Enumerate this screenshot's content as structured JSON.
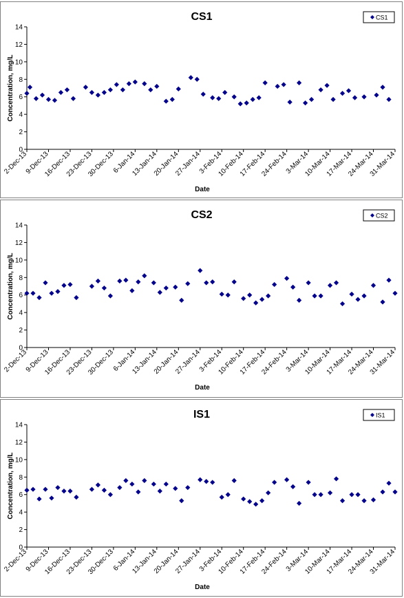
{
  "chart_data": [
    {
      "type": "scatter",
      "title": "CS1",
      "xlabel": "Date",
      "ylabel": "Concentration, mg/L",
      "ylim": [
        0,
        14
      ],
      "yticks": [
        0,
        2,
        4,
        6,
        8,
        10,
        12,
        14
      ],
      "xlim": [
        "2013-12-02",
        "2014-03-31"
      ],
      "xtick_labels": [
        "2-Dec-13",
        "9-Dec-13",
        "16-Dec-13",
        "23-Dec-13",
        "30-Dec-13",
        "6-Jan-14",
        "13-Jan-14",
        "20-Jan-14",
        "27-Jan-14",
        "3-Feb-14",
        "10-Feb-14",
        "17-Feb-14",
        "24-Feb-14",
        "3-Mar-14",
        "10-Mar-14",
        "17-Mar-14",
        "24-Mar-14",
        "31-Mar-14"
      ],
      "grid": false,
      "legend_position": "top-right",
      "marker_color": "#00008B",
      "series": [
        {
          "name": "CS1",
          "points": [
            {
              "x": "2013-12-02",
              "y": 6.4
            },
            {
              "x": "2013-12-03",
              "y": 7.1
            },
            {
              "x": "2013-12-05",
              "y": 5.8
            },
            {
              "x": "2013-12-07",
              "y": 6.2
            },
            {
              "x": "2013-12-09",
              "y": 5.7
            },
            {
              "x": "2013-12-11",
              "y": 5.6
            },
            {
              "x": "2013-12-13",
              "y": 6.5
            },
            {
              "x": "2013-12-15",
              "y": 6.8
            },
            {
              "x": "2013-12-17",
              "y": 5.8
            },
            {
              "x": "2013-12-21",
              "y": 7.1
            },
            {
              "x": "2013-12-23",
              "y": 6.5
            },
            {
              "x": "2013-12-25",
              "y": 6.2
            },
            {
              "x": "2013-12-27",
              "y": 6.5
            },
            {
              "x": "2013-12-29",
              "y": 6.8
            },
            {
              "x": "2013-12-31",
              "y": 7.4
            },
            {
              "x": "2014-01-02",
              "y": 6.8
            },
            {
              "x": "2014-01-04",
              "y": 7.5
            },
            {
              "x": "2014-01-06",
              "y": 7.7
            },
            {
              "x": "2014-01-09",
              "y": 7.5
            },
            {
              "x": "2014-01-11",
              "y": 6.8
            },
            {
              "x": "2014-01-13",
              "y": 7.2
            },
            {
              "x": "2014-01-16",
              "y": 5.5
            },
            {
              "x": "2014-01-18",
              "y": 5.7
            },
            {
              "x": "2014-01-20",
              "y": 6.9
            },
            {
              "x": "2014-01-24",
              "y": 8.2
            },
            {
              "x": "2014-01-26",
              "y": 8.0
            },
            {
              "x": "2014-01-28",
              "y": 6.3
            },
            {
              "x": "2014-01-31",
              "y": 5.9
            },
            {
              "x": "2014-02-02",
              "y": 5.8
            },
            {
              "x": "2014-02-04",
              "y": 6.5
            },
            {
              "x": "2014-02-07",
              "y": 6.0
            },
            {
              "x": "2014-02-09",
              "y": 5.2
            },
            {
              "x": "2014-02-11",
              "y": 5.3
            },
            {
              "x": "2014-02-13",
              "y": 5.7
            },
            {
              "x": "2014-02-15",
              "y": 5.9
            },
            {
              "x": "2014-02-17",
              "y": 7.6
            },
            {
              "x": "2014-02-21",
              "y": 7.2
            },
            {
              "x": "2014-02-23",
              "y": 7.4
            },
            {
              "x": "2014-02-25",
              "y": 5.4
            },
            {
              "x": "2014-02-28",
              "y": 7.6
            },
            {
              "x": "2014-03-02",
              "y": 5.3
            },
            {
              "x": "2014-03-04",
              "y": 5.7
            },
            {
              "x": "2014-03-07",
              "y": 6.8
            },
            {
              "x": "2014-03-09",
              "y": 7.3
            },
            {
              "x": "2014-03-11",
              "y": 5.7
            },
            {
              "x": "2014-03-14",
              "y": 6.4
            },
            {
              "x": "2014-03-16",
              "y": 6.7
            },
            {
              "x": "2014-03-18",
              "y": 5.9
            },
            {
              "x": "2014-03-21",
              "y": 6.0
            },
            {
              "x": "2014-03-25",
              "y": 6.2
            },
            {
              "x": "2014-03-27",
              "y": 7.1
            },
            {
              "x": "2014-03-29",
              "y": 5.7
            }
          ]
        }
      ]
    },
    {
      "type": "scatter",
      "title": "CS2",
      "xlabel": "Date",
      "ylabel": "Concentration, mg/L",
      "ylim": [
        0,
        14
      ],
      "yticks": [
        0,
        2,
        4,
        6,
        8,
        10,
        12,
        14
      ],
      "xlim": [
        "2013-12-02",
        "2014-03-31"
      ],
      "xtick_labels": [
        "2-Dec-13",
        "9-Dec-13",
        "16-Dec-13",
        "23-Dec-13",
        "30-Dec-13",
        "6-Jan-14",
        "13-Jan-14",
        "20-Jan-14",
        "27-Jan-14",
        "3-Feb-14",
        "10-Feb-14",
        "17-Feb-14",
        "24-Feb-14",
        "3-Mar-14",
        "10-Mar-14",
        "17-Mar-14",
        "24-Mar-14",
        "31-Mar-14"
      ],
      "grid": false,
      "legend_position": "top-right",
      "marker_color": "#00008B",
      "series": [
        {
          "name": "CS2",
          "points": [
            {
              "x": "2013-12-02",
              "y": 6.2
            },
            {
              "x": "2013-12-04",
              "y": 6.2
            },
            {
              "x": "2013-12-06",
              "y": 5.7
            },
            {
              "x": "2013-12-08",
              "y": 7.4
            },
            {
              "x": "2013-12-10",
              "y": 6.2
            },
            {
              "x": "2013-12-12",
              "y": 6.4
            },
            {
              "x": "2013-12-14",
              "y": 7.1
            },
            {
              "x": "2013-12-16",
              "y": 7.2
            },
            {
              "x": "2013-12-18",
              "y": 5.7
            },
            {
              "x": "2013-12-23",
              "y": 7.0
            },
            {
              "x": "2013-12-25",
              "y": 7.6
            },
            {
              "x": "2013-12-27",
              "y": 6.8
            },
            {
              "x": "2013-12-29",
              "y": 5.9
            },
            {
              "x": "2014-01-01",
              "y": 7.6
            },
            {
              "x": "2014-01-03",
              "y": 7.7
            },
            {
              "x": "2014-01-05",
              "y": 6.5
            },
            {
              "x": "2014-01-07",
              "y": 7.5
            },
            {
              "x": "2014-01-09",
              "y": 8.2
            },
            {
              "x": "2014-01-12",
              "y": 7.4
            },
            {
              "x": "2014-01-14",
              "y": 6.3
            },
            {
              "x": "2014-01-16",
              "y": 6.8
            },
            {
              "x": "2014-01-19",
              "y": 6.9
            },
            {
              "x": "2014-01-21",
              "y": 5.4
            },
            {
              "x": "2014-01-23",
              "y": 7.3
            },
            {
              "x": "2014-01-27",
              "y": 8.8
            },
            {
              "x": "2014-01-29",
              "y": 7.4
            },
            {
              "x": "2014-01-31",
              "y": 7.5
            },
            {
              "x": "2014-02-03",
              "y": 6.1
            },
            {
              "x": "2014-02-05",
              "y": 6.0
            },
            {
              "x": "2014-02-07",
              "y": 7.5
            },
            {
              "x": "2014-02-10",
              "y": 5.6
            },
            {
              "x": "2014-02-12",
              "y": 6.0
            },
            {
              "x": "2014-02-14",
              "y": 5.1
            },
            {
              "x": "2014-02-16",
              "y": 5.5
            },
            {
              "x": "2014-02-18",
              "y": 5.9
            },
            {
              "x": "2014-02-20",
              "y": 7.2
            },
            {
              "x": "2014-02-24",
              "y": 7.9
            },
            {
              "x": "2014-02-26",
              "y": 6.9
            },
            {
              "x": "2014-02-28",
              "y": 5.4
            },
            {
              "x": "2014-03-03",
              "y": 7.4
            },
            {
              "x": "2014-03-05",
              "y": 5.9
            },
            {
              "x": "2014-03-07",
              "y": 5.9
            },
            {
              "x": "2014-03-10",
              "y": 7.1
            },
            {
              "x": "2014-03-12",
              "y": 7.4
            },
            {
              "x": "2014-03-14",
              "y": 5.0
            },
            {
              "x": "2014-03-17",
              "y": 6.1
            },
            {
              "x": "2014-03-19",
              "y": 5.5
            },
            {
              "x": "2014-03-21",
              "y": 5.9
            },
            {
              "x": "2014-03-24",
              "y": 7.1
            },
            {
              "x": "2014-03-27",
              "y": 5.2
            },
            {
              "x": "2014-03-29",
              "y": 7.7
            },
            {
              "x": "2014-03-31",
              "y": 6.2
            }
          ]
        }
      ]
    },
    {
      "type": "scatter",
      "title": "IS1",
      "xlabel": "Date",
      "ylabel": "Concentration, mg/L",
      "ylim": [
        0,
        14
      ],
      "yticks": [
        0,
        2,
        4,
        6,
        8,
        10,
        12,
        14
      ],
      "xlim": [
        "2013-12-02",
        "2014-03-31"
      ],
      "xtick_labels": [
        "2-Dec-13",
        "9-Dec-13",
        "16-Dec-13",
        "23-Dec-13",
        "30-Dec-13",
        "6-Jan-14",
        "13-Jan-14",
        "20-Jan-14",
        "27-Jan-14",
        "3-Feb-14",
        "10-Feb-14",
        "17-Feb-14",
        "24-Feb-14",
        "3-Mar-14",
        "10-Mar-14",
        "17-Mar-14",
        "24-Mar-14",
        "31-Mar-14"
      ],
      "grid": false,
      "legend_position": "top-right",
      "marker_color": "#00008B",
      "series": [
        {
          "name": "IS1",
          "points": [
            {
              "x": "2013-12-02",
              "y": 6.5
            },
            {
              "x": "2013-12-04",
              "y": 6.6
            },
            {
              "x": "2013-12-06",
              "y": 5.5
            },
            {
              "x": "2013-12-08",
              "y": 6.6
            },
            {
              "x": "2013-12-10",
              "y": 5.6
            },
            {
              "x": "2013-12-12",
              "y": 6.8
            },
            {
              "x": "2013-12-14",
              "y": 6.4
            },
            {
              "x": "2013-12-16",
              "y": 6.4
            },
            {
              "x": "2013-12-18",
              "y": 5.7
            },
            {
              "x": "2013-12-23",
              "y": 6.6
            },
            {
              "x": "2013-12-25",
              "y": 7.1
            },
            {
              "x": "2013-12-27",
              "y": 6.5
            },
            {
              "x": "2013-12-29",
              "y": 6.0
            },
            {
              "x": "2014-01-01",
              "y": 6.8
            },
            {
              "x": "2014-01-03",
              "y": 7.6
            },
            {
              "x": "2014-01-05",
              "y": 7.2
            },
            {
              "x": "2014-01-07",
              "y": 6.3
            },
            {
              "x": "2014-01-09",
              "y": 7.6
            },
            {
              "x": "2014-01-12",
              "y": 7.2
            },
            {
              "x": "2014-01-14",
              "y": 6.4
            },
            {
              "x": "2014-01-16",
              "y": 7.2
            },
            {
              "x": "2014-01-19",
              "y": 6.7
            },
            {
              "x": "2014-01-21",
              "y": 5.3
            },
            {
              "x": "2014-01-23",
              "y": 6.8
            },
            {
              "x": "2014-01-27",
              "y": 7.7
            },
            {
              "x": "2014-01-29",
              "y": 7.5
            },
            {
              "x": "2014-01-31",
              "y": 7.4
            },
            {
              "x": "2014-02-03",
              "y": 5.7
            },
            {
              "x": "2014-02-05",
              "y": 6.0
            },
            {
              "x": "2014-02-07",
              "y": 7.6
            },
            {
              "x": "2014-02-10",
              "y": 5.5
            },
            {
              "x": "2014-02-12",
              "y": 5.2
            },
            {
              "x": "2014-02-14",
              "y": 4.9
            },
            {
              "x": "2014-02-16",
              "y": 5.3
            },
            {
              "x": "2014-02-18",
              "y": 6.2
            },
            {
              "x": "2014-02-20",
              "y": 7.4
            },
            {
              "x": "2014-02-24",
              "y": 7.7
            },
            {
              "x": "2014-02-26",
              "y": 6.9
            },
            {
              "x": "2014-02-28",
              "y": 5.0
            },
            {
              "x": "2014-03-03",
              "y": 7.4
            },
            {
              "x": "2014-03-05",
              "y": 6.0
            },
            {
              "x": "2014-03-07",
              "y": 6.0
            },
            {
              "x": "2014-03-10",
              "y": 6.2
            },
            {
              "x": "2014-03-12",
              "y": 7.8
            },
            {
              "x": "2014-03-14",
              "y": 5.3
            },
            {
              "x": "2014-03-17",
              "y": 6.0
            },
            {
              "x": "2014-03-19",
              "y": 6.0
            },
            {
              "x": "2014-03-21",
              "y": 5.3
            },
            {
              "x": "2014-03-24",
              "y": 5.4
            },
            {
              "x": "2014-03-27",
              "y": 6.3
            },
            {
              "x": "2014-03-29",
              "y": 7.3
            },
            {
              "x": "2014-03-31",
              "y": 6.3
            }
          ]
        }
      ]
    }
  ]
}
